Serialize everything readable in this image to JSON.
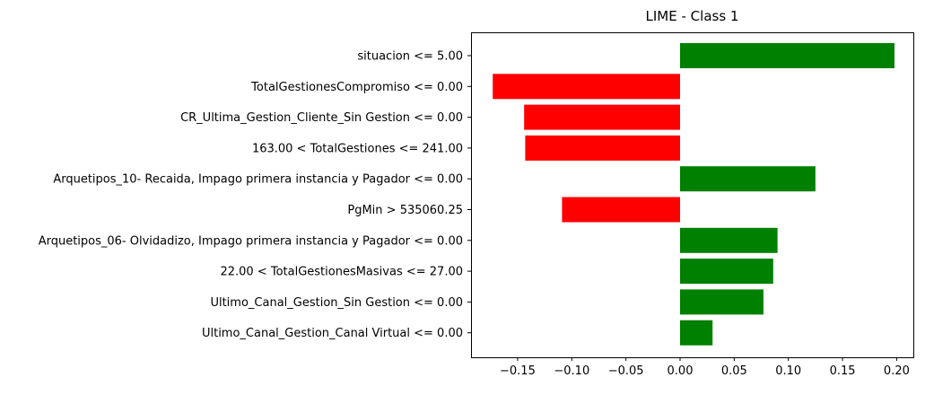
{
  "chart_data": {
    "type": "bar",
    "orientation": "horizontal",
    "title": "LIME - Class 1",
    "xlabel": "",
    "ylabel": "",
    "xlim": [
      -0.19,
      0.21
    ],
    "xticks": [
      -0.15,
      -0.1,
      -0.05,
      0.0,
      0.05,
      0.1,
      0.15,
      0.2
    ],
    "xtick_labels": [
      "−0.15",
      "−0.10",
      "−0.05",
      "0.00",
      "0.05",
      "0.10",
      "0.15",
      "0.20"
    ],
    "grid": false,
    "legend": "none",
    "colors": {
      "positive": "#008000",
      "negative": "#ff0000"
    },
    "categories": [
      "situacion <= 5.00",
      "TotalGestionesCompromiso <= 0.00",
      "CR_Ultima_Gestion_Cliente_Sin Gestion <= 0.00",
      "163.00 < TotalGestiones <= 241.00",
      "Arquetipos_10- Recaida, Impago primera instancia y Pagador <= 0.00",
      "PgMin > 535060.25",
      "Arquetipos_06- Olvidadizo, Impago primera instancia y Pagador <= 0.00",
      "22.00 < TotalGestionesMasivas <= 27.00",
      "Ultimo_Canal_Gestion_Sin Gestion <= 0.00",
      "Ultimo_Canal_Gestion_Canal Virtual <= 0.00"
    ],
    "values": [
      0.198,
      -0.173,
      -0.144,
      -0.143,
      0.125,
      -0.109,
      0.09,
      0.086,
      0.077,
      0.03
    ]
  }
}
